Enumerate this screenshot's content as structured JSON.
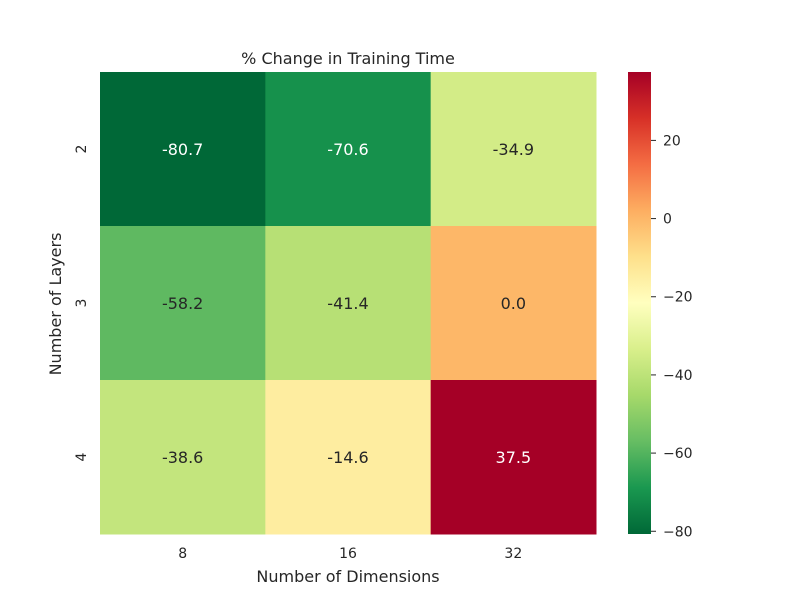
{
  "chart_data": {
    "type": "heatmap",
    "title": "% Change in Training Time",
    "xlabel": "Number of Dimensions",
    "ylabel": "Number of Layers",
    "x_categories": [
      "8",
      "16",
      "32"
    ],
    "y_categories": [
      "2",
      "3",
      "4"
    ],
    "values": [
      [
        -80.7,
        -70.6,
        -34.9
      ],
      [
        -58.2,
        -41.4,
        0.0
      ],
      [
        -38.6,
        -14.6,
        37.5
      ]
    ],
    "value_labels": [
      [
        "-80.7",
        "-70.6",
        "-34.9"
      ],
      [
        "-58.2",
        "-41.4",
        "0.0"
      ],
      [
        "-38.6",
        "-14.6",
        "37.5"
      ]
    ],
    "colormap": "RdYlGn_r",
    "vmin": -80.7,
    "vmax": 37.5,
    "colorbar_ticks": [
      20,
      0,
      -20,
      -40,
      -60,
      -80
    ],
    "colorbar_tick_labels": [
      "20",
      "0",
      "−20",
      "−40",
      "−60",
      "−80"
    ],
    "grid": false
  }
}
